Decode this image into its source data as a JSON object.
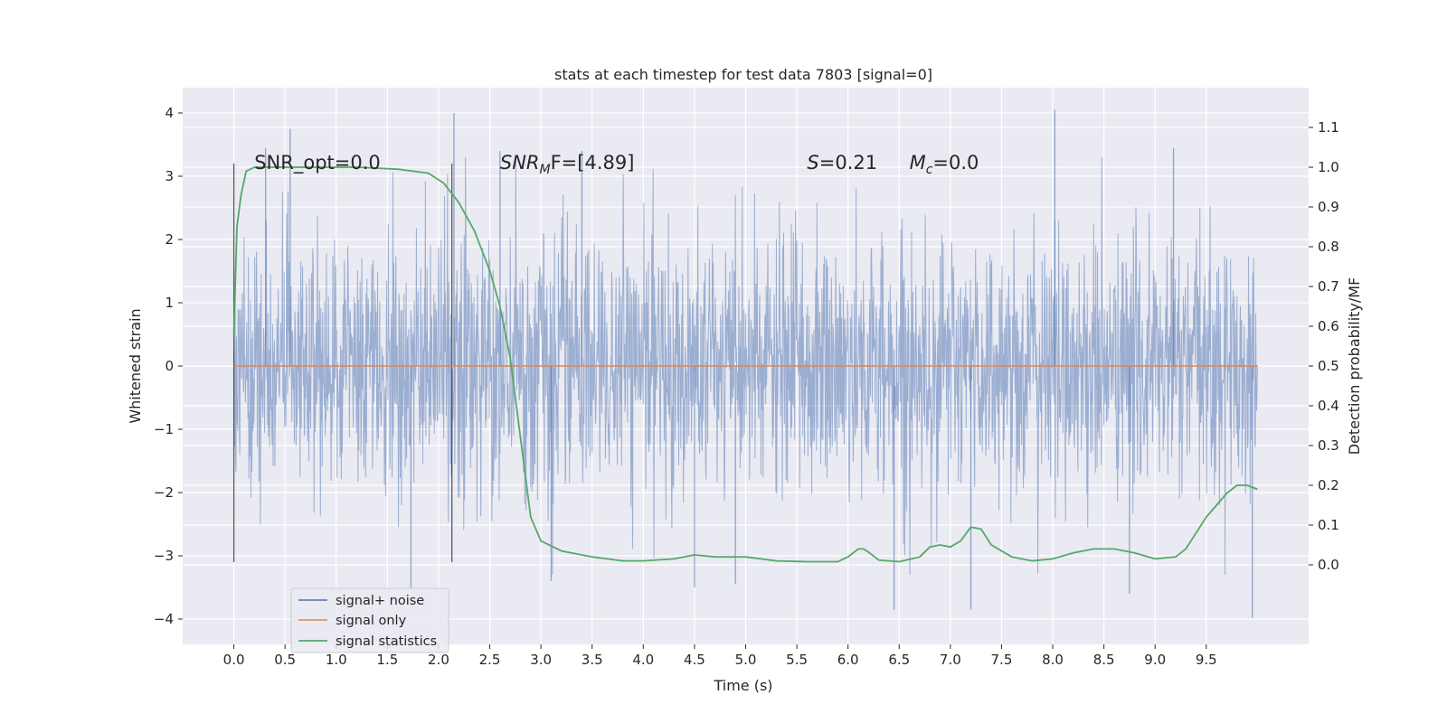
{
  "chart_data": {
    "type": "line",
    "title": "stats at each timestep for test data 7803 [signal=0]",
    "xlabel": "Time (s)",
    "ylabel_left": "Whitened strain",
    "ylabel_right": "Detection probability/MF",
    "xlim": [
      -0.5,
      10.5
    ],
    "ylim_left": [
      -4.4,
      4.4
    ],
    "ylim_right": [
      -0.2,
      1.2
    ],
    "x_ticks": [
      0.0,
      0.5,
      1.0,
      1.5,
      2.0,
      2.5,
      3.0,
      3.5,
      4.0,
      4.5,
      5.0,
      5.5,
      6.0,
      6.5,
      7.0,
      7.5,
      8.0,
      8.5,
      9.0,
      9.5
    ],
    "x_tick_labels": [
      "0.0",
      "0.5",
      "1.0",
      "1.5",
      "2.0",
      "2.5",
      "3.0",
      "3.5",
      "4.0",
      "4.5",
      "5.0",
      "5.5",
      "6.0",
      "6.5",
      "7.0",
      "7.5",
      "8.0",
      "8.5",
      "9.0",
      "9.5"
    ],
    "y_left_ticks": [
      4,
      3,
      2,
      1,
      0,
      -1,
      -2,
      -3,
      -4
    ],
    "y_left_tick_labels": [
      "4",
      "3",
      "2",
      "1",
      "0",
      "−1",
      "−2",
      "−3",
      "−4"
    ],
    "y_right_ticks": [
      1.1,
      1.0,
      0.9,
      0.8,
      0.7,
      0.6,
      0.5,
      0.4,
      0.3,
      0.2,
      0.1,
      0.0
    ],
    "y_right_tick_labels": [
      "1.1",
      "1.0",
      "0.9",
      "0.8",
      "0.7",
      "0.6",
      "0.5",
      "0.4",
      "0.3",
      "0.2",
      "0.1",
      "0.0"
    ],
    "grid": true,
    "legend_position": "lower-left",
    "annotations": [
      {
        "x": 0.2,
        "text": "SNR_opt=0.0"
      },
      {
        "x": 2.6,
        "text_main": "SNR",
        "text_sub": "M",
        "text_tail": "F=[4.89]"
      },
      {
        "x": 5.6,
        "text_main": "S",
        "text_tail": "=0.21"
      },
      {
        "x": 6.6,
        "text_main": "M",
        "text_sub": "c",
        "text_tail": "=0.0"
      }
    ],
    "vertical_markers": [
      {
        "x": 0.0,
        "y_range": [
          -3.1,
          3.2
        ]
      },
      {
        "x": 2.13,
        "y_range": [
          -3.1,
          3.2
        ]
      }
    ],
    "series": [
      {
        "name": "signal+ noise",
        "color": "#4c72b0",
        "kind": "noise",
        "axis": "left",
        "x_range": [
          0.0,
          10.0
        ],
        "typical_amplitude": 1.3,
        "peak_max": 4.05,
        "peak_min": -3.98,
        "spikes": [
          {
            "x": 0.31,
            "y": 3.45
          },
          {
            "x": 0.55,
            "y": 3.75
          },
          {
            "x": 2.15,
            "y": 4.0
          },
          {
            "x": 1.73,
            "y": -3.5
          },
          {
            "x": 3.1,
            "y": -3.4
          },
          {
            "x": 4.5,
            "y": -3.5
          },
          {
            "x": 4.9,
            "y": -3.45
          },
          {
            "x": 6.45,
            "y": -3.85
          },
          {
            "x": 7.2,
            "y": -3.85
          },
          {
            "x": 8.02,
            "y": 4.05
          },
          {
            "x": 8.75,
            "y": -3.6
          },
          {
            "x": 9.18,
            "y": 3.45
          },
          {
            "x": 9.95,
            "y": -3.98
          },
          {
            "x": 2.6,
            "y": 3.4
          },
          {
            "x": 3.4,
            "y": 3.4
          }
        ]
      },
      {
        "name": "signal only",
        "color": "#dd8452",
        "kind": "line",
        "axis": "left",
        "x": [
          0.0,
          10.0
        ],
        "y": [
          0.0,
          0.0
        ]
      },
      {
        "name": "signal statistics",
        "color": "#55a868",
        "kind": "line",
        "axis": "right",
        "x": [
          0.0,
          0.03,
          0.07,
          0.12,
          0.2,
          0.4,
          0.8,
          1.2,
          1.6,
          1.9,
          2.05,
          2.2,
          2.35,
          2.5,
          2.6,
          2.7,
          2.8,
          2.9,
          3.0,
          3.2,
          3.5,
          3.8,
          4.0,
          4.3,
          4.5,
          4.7,
          5.0,
          5.3,
          5.6,
          5.9,
          6.0,
          6.1,
          6.15,
          6.2,
          6.3,
          6.5,
          6.7,
          6.8,
          6.9,
          7.0,
          7.1,
          7.2,
          7.3,
          7.4,
          7.6,
          7.8,
          8.0,
          8.2,
          8.4,
          8.6,
          8.8,
          9.0,
          9.2,
          9.3,
          9.4,
          9.5,
          9.6,
          9.7,
          9.8,
          9.9,
          10.0
        ],
        "y": [
          0.58,
          0.85,
          0.93,
          0.99,
          1.0,
          1.0,
          1.0,
          1.0,
          0.995,
          0.985,
          0.96,
          0.91,
          0.84,
          0.74,
          0.65,
          0.52,
          0.32,
          0.12,
          0.06,
          0.035,
          0.02,
          0.01,
          0.01,
          0.015,
          0.025,
          0.02,
          0.02,
          0.01,
          0.008,
          0.008,
          0.02,
          0.04,
          0.04,
          0.032,
          0.012,
          0.008,
          0.02,
          0.045,
          0.05,
          0.045,
          0.06,
          0.095,
          0.09,
          0.05,
          0.02,
          0.01,
          0.015,
          0.03,
          0.04,
          0.04,
          0.03,
          0.015,
          0.02,
          0.04,
          0.08,
          0.12,
          0.15,
          0.18,
          0.2,
          0.2,
          0.19
        ]
      }
    ]
  }
}
